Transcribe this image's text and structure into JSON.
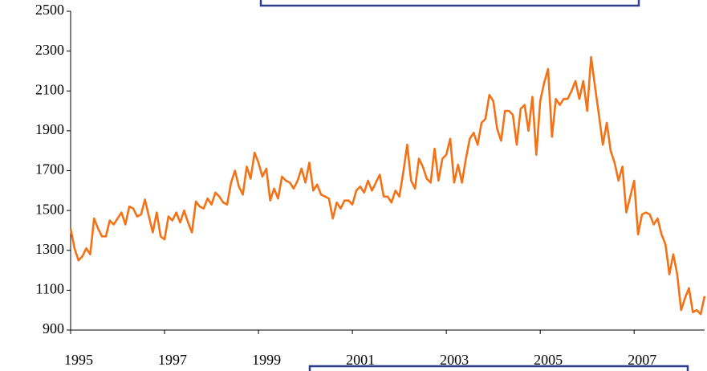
{
  "chart_data": {
    "type": "line",
    "x": [
      1995,
      1995.083,
      1995.167,
      1995.25,
      1995.333,
      1995.417,
      1995.5,
      1995.583,
      1995.667,
      1995.75,
      1995.833,
      1995.917,
      1996,
      1996.083,
      1996.167,
      1996.25,
      1996.333,
      1996.417,
      1996.5,
      1996.583,
      1996.667,
      1996.75,
      1996.833,
      1996.917,
      1997,
      1997.083,
      1997.167,
      1997.25,
      1997.333,
      1997.417,
      1997.5,
      1997.583,
      1997.667,
      1997.75,
      1997.833,
      1997.917,
      1998,
      1998.083,
      1998.167,
      1998.25,
      1998.333,
      1998.417,
      1998.5,
      1998.583,
      1998.667,
      1998.75,
      1998.833,
      1998.917,
      1999,
      1999.083,
      1999.167,
      1999.25,
      1999.333,
      1999.417,
      1999.5,
      1999.583,
      1999.667,
      1999.75,
      1999.833,
      1999.917,
      2000,
      2000.083,
      2000.167,
      2000.25,
      2000.333,
      2000.417,
      2000.5,
      2000.583,
      2000.667,
      2000.75,
      2000.833,
      2000.917,
      2001,
      2001.083,
      2001.167,
      2001.25,
      2001.333,
      2001.417,
      2001.5,
      2001.583,
      2001.667,
      2001.75,
      2001.833,
      2001.917,
      2002,
      2002.083,
      2002.167,
      2002.25,
      2002.333,
      2002.417,
      2002.5,
      2002.583,
      2002.667,
      2002.75,
      2002.833,
      2002.917,
      2003,
      2003.083,
      2003.167,
      2003.25,
      2003.333,
      2003.417,
      2003.5,
      2003.583,
      2003.667,
      2003.75,
      2003.833,
      2003.917,
      2004,
      2004.083,
      2004.167,
      2004.25,
      2004.333,
      2004.417,
      2004.5,
      2004.583,
      2004.667,
      2004.75,
      2004.833,
      2004.917,
      2005,
      2005.083,
      2005.167,
      2005.25,
      2005.333,
      2005.417,
      2005.5,
      2005.583,
      2005.667,
      2005.75,
      2005.833,
      2005.917,
      2006,
      2006.083,
      2006.167,
      2006.25,
      2006.333,
      2006.417,
      2006.5,
      2006.583,
      2006.667,
      2006.75,
      2006.833,
      2006.917,
      2007,
      2007.083,
      2007.167,
      2007.25,
      2007.333,
      2007.417,
      2007.5,
      2007.583,
      2007.667,
      2007.75,
      2007.833,
      2007.917,
      2008,
      2008.083,
      2008.167,
      2008.25,
      2008.333,
      2008.417,
      2008.5
    ],
    "series": [
      {
        "color": "#f47216",
        "values": [
          1410,
          1310,
          1250,
          1270,
          1310,
          1280,
          1460,
          1410,
          1370,
          1370,
          1450,
          1430,
          1460,
          1490,
          1430,
          1520,
          1510,
          1470,
          1480,
          1555,
          1470,
          1390,
          1490,
          1370,
          1355,
          1470,
          1450,
          1490,
          1440,
          1500,
          1440,
          1390,
          1545,
          1520,
          1510,
          1560,
          1530,
          1590,
          1570,
          1540,
          1530,
          1640,
          1700,
          1620,
          1580,
          1720,
          1660,
          1790,
          1740,
          1670,
          1710,
          1550,
          1610,
          1560,
          1670,
          1650,
          1640,
          1610,
          1650,
          1710,
          1640,
          1740,
          1600,
          1630,
          1580,
          1570,
          1560,
          1460,
          1540,
          1510,
          1550,
          1550,
          1530,
          1600,
          1620,
          1590,
          1650,
          1600,
          1640,
          1680,
          1570,
          1570,
          1540,
          1600,
          1570,
          1690,
          1830,
          1650,
          1610,
          1760,
          1720,
          1660,
          1640,
          1810,
          1650,
          1760,
          1780,
          1860,
          1640,
          1730,
          1640,
          1760,
          1860,
          1890,
          1830,
          1940,
          1960,
          2080,
          2050,
          1910,
          1850,
          2000,
          2000,
          1980,
          1830,
          2010,
          2030,
          1900,
          2070,
          1780,
          2050,
          2140,
          2210,
          1870,
          2060,
          2030,
          2060,
          2060,
          2100,
          2150,
          2060,
          2150,
          2000,
          2270,
          2120,
          1980,
          1830,
          1940,
          1800,
          1740,
          1650,
          1720,
          1490,
          1570,
          1650,
          1380,
          1480,
          1490,
          1480,
          1430,
          1460,
          1380,
          1330,
          1180,
          1280,
          1180,
          1000,
          1060,
          1110,
          990,
          1000,
          980,
          1070
        ]
      }
    ],
    "xlim": [
      1995,
      2008.5
    ],
    "xticks": [
      1995,
      1997,
      1999,
      2001,
      2003,
      2005,
      2007
    ],
    "ylim": [
      900,
      2500
    ],
    "yticks": [
      900,
      1100,
      1300,
      1500,
      1700,
      1900,
      2100,
      2300,
      2500
    ]
  }
}
